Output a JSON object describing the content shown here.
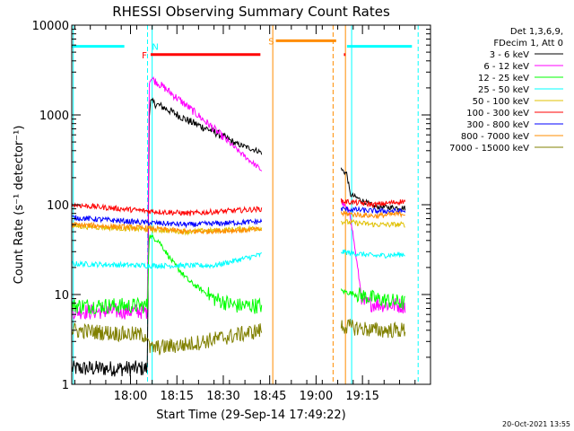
{
  "chart_data": {
    "type": "line",
    "title": "RHESSI Observing Summary Count Rates",
    "xlabel": "Start Time (29-Sep-14 17:49:22)",
    "ylabel": "Count Rate (s⁻¹ detector⁻¹)",
    "yscale": "log",
    "ylim": [
      1,
      10000
    ],
    "xlim_minutes": [
      -8,
      108
    ],
    "x_ticks": [
      {
        "minute": 11,
        "label": "18:00"
      },
      {
        "minute": 26,
        "label": "18:15"
      },
      {
        "minute": 41,
        "label": "18:30"
      },
      {
        "minute": 56,
        "label": "18:45"
      },
      {
        "minute": 71,
        "label": "19:00"
      },
      {
        "minute": 86,
        "label": "19:15"
      }
    ],
    "y_ticks": [
      {
        "value": 1,
        "label": "1"
      },
      {
        "value": 10,
        "label": "10"
      },
      {
        "value": 100,
        "label": "100"
      },
      {
        "value": 1000,
        "label": "1000"
      },
      {
        "value": 10000,
        "label": "10000"
      }
    ],
    "legend": {
      "placement": "right",
      "header": [
        "Det 1,3,6,9,",
        "FDecim 1, Att 0"
      ]
    },
    "series": [
      {
        "name": "3 - 6 keV",
        "color": "#000000",
        "points": [
          [
            -8,
            1.5
          ],
          [
            10,
            1.5
          ],
          [
            16.5,
            1.5
          ],
          [
            17,
            1000
          ],
          [
            17.5,
            1400
          ],
          [
            22,
            1200
          ],
          [
            30,
            850
          ],
          [
            38,
            650
          ],
          [
            45,
            480
          ],
          [
            52,
            400
          ],
          [
            53.5,
            380
          ],
          [
            79,
            250
          ],
          [
            81,
            220
          ],
          [
            82,
            130
          ],
          [
            90,
            95
          ],
          [
            100,
            92
          ]
        ]
      },
      {
        "name": "6 - 12 keV",
        "color": "#ff00ff",
        "points": [
          [
            -8,
            6.5
          ],
          [
            10,
            6.5
          ],
          [
            16.5,
            6.5
          ],
          [
            17,
            2200
          ],
          [
            17.5,
            2600
          ],
          [
            22,
            2000
          ],
          [
            30,
            1200
          ],
          [
            38,
            700
          ],
          [
            45,
            420
          ],
          [
            53.5,
            240
          ],
          [
            79,
            110
          ],
          [
            82,
            80
          ],
          [
            86,
            8
          ],
          [
            100,
            7.5
          ]
        ]
      },
      {
        "name": "12 - 25 keV",
        "color": "#00ff00",
        "points": [
          [
            -8,
            7.5
          ],
          [
            16.5,
            7.5
          ],
          [
            17,
            45
          ],
          [
            20,
            40
          ],
          [
            25,
            22
          ],
          [
            30,
            14
          ],
          [
            38,
            9
          ],
          [
            45,
            7.5
          ],
          [
            53.5,
            7.5
          ],
          [
            79,
            11
          ],
          [
            90,
            9
          ],
          [
            100,
            8
          ]
        ]
      },
      {
        "name": "25 - 50 keV",
        "color": "#00ffff",
        "points": [
          [
            -8,
            22
          ],
          [
            16.5,
            21
          ],
          [
            25,
            21
          ],
          [
            38,
            21
          ],
          [
            53.5,
            28
          ],
          [
            79,
            30
          ],
          [
            90,
            27
          ],
          [
            100,
            28
          ]
        ]
      },
      {
        "name": "50 - 100 keV",
        "color": "#e0c000",
        "points": [
          [
            -8,
            58
          ],
          [
            16.5,
            53
          ],
          [
            30,
            50
          ],
          [
            53.5,
            55
          ],
          [
            79,
            65
          ],
          [
            90,
            60
          ],
          [
            100,
            60
          ]
        ]
      },
      {
        "name": "100 - 300 keV",
        "color": "#ff0000",
        "points": [
          [
            -8,
            100
          ],
          [
            16.5,
            85
          ],
          [
            30,
            80
          ],
          [
            53.5,
            90
          ],
          [
            79,
            110
          ],
          [
            90,
            100
          ],
          [
            100,
            110
          ]
        ]
      },
      {
        "name": "300 - 800 keV",
        "color": "#0000ff",
        "points": [
          [
            -8,
            72
          ],
          [
            16.5,
            63
          ],
          [
            30,
            60
          ],
          [
            53.5,
            65
          ],
          [
            79,
            90
          ],
          [
            90,
            85
          ],
          [
            100,
            85
          ]
        ]
      },
      {
        "name": "800 - 7000 keV",
        "color": "#ff8c00",
        "points": [
          [
            -8,
            60
          ],
          [
            16.5,
            55
          ],
          [
            30,
            50
          ],
          [
            53.5,
            53
          ],
          [
            79,
            80
          ],
          [
            90,
            75
          ],
          [
            100,
            80
          ]
        ]
      },
      {
        "name": "7000 - 15000 keV",
        "color": "#808000",
        "points": [
          [
            -8,
            4
          ],
          [
            16.5,
            3.5
          ],
          [
            17,
            2.5
          ],
          [
            30,
            2.8
          ],
          [
            53.5,
            4
          ],
          [
            79,
            4.5
          ],
          [
            90,
            4
          ],
          [
            100,
            4
          ]
        ]
      }
    ],
    "gaps_minutes": [
      [
        53.5,
        79
      ]
    ],
    "annotations": [
      {
        "letter": "F",
        "color": "#ff0000",
        "start_minute": 17.5,
        "end_minute": 53,
        "value": 4700,
        "label_minute": 15.5
      },
      {
        "letter": "N",
        "color": "#00ffff",
        "start_minute": 17,
        "end_minute": 17,
        "value": 5800,
        "label_minute": 19
      },
      {
        "letter": "S",
        "color": "#ff8c00",
        "start_minute": 58,
        "end_minute": 77.5,
        "value": 6700,
        "label_minute": 56.5
      },
      {
        "letter": "",
        "color": "#ff0000",
        "start_minute": 80,
        "end_minute": 80.5,
        "value": 4700,
        "label_minute": 80
      },
      {
        "letter": "",
        "color": "#00ffff",
        "start_minute": -8,
        "end_minute": 9,
        "value": 5800,
        "label_minute": -8
      },
      {
        "letter": "",
        "color": "#00ffff",
        "start_minute": 81,
        "end_minute": 102,
        "value": 5800,
        "label_minute": 81
      }
    ],
    "markers": [
      {
        "minute": -7.5,
        "color": "#00ffff",
        "style": "solid"
      },
      {
        "minute": 16.5,
        "color": "#00ffff",
        "style": "dashed"
      },
      {
        "minute": 18,
        "color": "#00ffff",
        "style": "solid"
      },
      {
        "minute": 57,
        "color": "#ff8c00",
        "style": "solid"
      },
      {
        "minute": 76.5,
        "color": "#ff8c00",
        "style": "dashed"
      },
      {
        "minute": 80.5,
        "color": "#ff8c00",
        "style": "solid"
      },
      {
        "minute": 82.5,
        "color": "#00ffff",
        "style": "solid"
      },
      {
        "minute": 104,
        "color": "#00ffff",
        "style": "dashed"
      }
    ]
  },
  "footer": {
    "timestamp": "20-Oct-2021 13:55"
  }
}
